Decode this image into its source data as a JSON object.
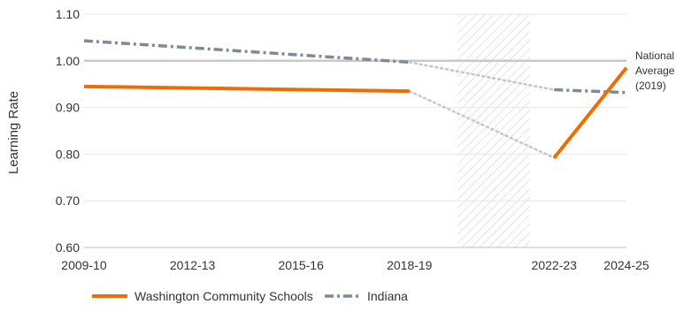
{
  "chart_data": {
    "type": "line",
    "ylabel": "Learning Rate",
    "xlabel": "",
    "ylim": [
      0.6,
      1.1
    ],
    "yticks": [
      "0.60",
      "0.70",
      "0.80",
      "0.90",
      "1.00",
      "1.10"
    ],
    "year_ticks": [
      {
        "label": "2009-10",
        "year": 2009
      },
      {
        "label": "2012-13",
        "year": 2012
      },
      {
        "label": "2015-16",
        "year": 2015
      },
      {
        "label": "2018-19",
        "year": 2018
      },
      {
        "label": "2022-23",
        "year": 2022
      },
      {
        "label": "2024-25",
        "year": 2024
      }
    ],
    "xlim_years": [
      2009,
      2024
    ],
    "excluded_period": {
      "from_year": 2019,
      "to_year": 2021
    },
    "reference_line": {
      "value": 1.0,
      "label_lines": [
        "National",
        "Average",
        "(2019)"
      ]
    },
    "series": [
      {
        "name": "Washington Community Schools",
        "color": "#ef6c00",
        "style": "solid",
        "segments": [
          [
            {
              "year": 2009,
              "value": 0.945
            },
            {
              "year": 2018,
              "value": 0.935
            }
          ],
          [
            {
              "year": 2022,
              "value": 0.792
            },
            {
              "year": 2024,
              "value": 0.985
            }
          ]
        ],
        "bridge": [
          {
            "year": 2018,
            "value": 0.935
          },
          {
            "year": 2022,
            "value": 0.792
          }
        ]
      },
      {
        "name": "Indiana",
        "color": "#7d8a99",
        "style": "dashed",
        "segments": [
          [
            {
              "year": 2009,
              "value": 1.043
            },
            {
              "year": 2018,
              "value": 0.997
            }
          ],
          [
            {
              "year": 2022,
              "value": 0.938
            },
            {
              "year": 2024,
              "value": 0.932
            }
          ]
        ],
        "bridge": [
          {
            "year": 2018,
            "value": 0.997
          },
          {
            "year": 2022,
            "value": 0.938
          }
        ]
      }
    ],
    "bridge_color": "#c3c6ca",
    "grid": "horizontal",
    "legend_position": "bottom-left"
  }
}
